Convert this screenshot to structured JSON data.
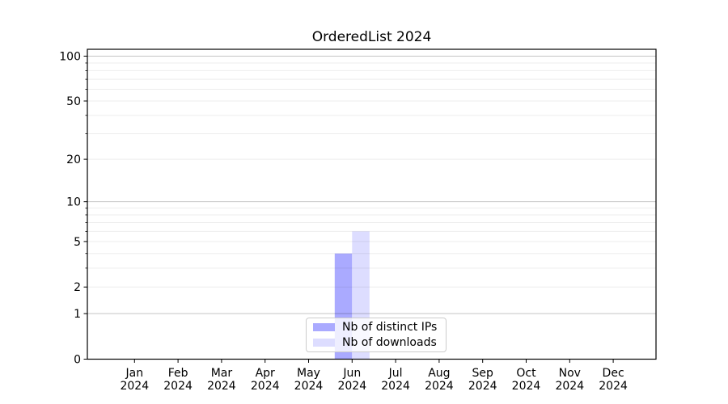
{
  "title": "OrderedList 2024",
  "legend": {
    "items": [
      {
        "label": "Nb of distinct IPs",
        "color": "#aaaaff"
      },
      {
        "label": "Nb of downloads",
        "color": "#ddddff"
      }
    ]
  },
  "chart_data": {
    "type": "bar",
    "title": "OrderedList 2024",
    "categories": [
      "Jan 2024",
      "Feb 2024",
      "Mar 2024",
      "Apr 2024",
      "May 2024",
      "Jun 2024",
      "Jul 2024",
      "Aug 2024",
      "Sep 2024",
      "Oct 2024",
      "Nov 2024",
      "Dec 2024"
    ],
    "series": [
      {
        "name": "Nb of distinct IPs",
        "color": "#aaaaff",
        "values": [
          0,
          0,
          0,
          0,
          0,
          4,
          0,
          0,
          0,
          0,
          0,
          0
        ]
      },
      {
        "name": "Nb of downloads",
        "color": "#ddddff",
        "values": [
          0,
          0,
          0,
          0,
          0,
          6,
          0,
          0,
          0,
          0,
          0,
          0
        ]
      }
    ],
    "xlabel": "",
    "ylabel": "",
    "yscale": "log1p",
    "ylim": [
      0,
      110
    ],
    "y_major_ticks": [
      0,
      1,
      2,
      5,
      10,
      20,
      50,
      100
    ],
    "y_decade_ticks": [
      1,
      10,
      100
    ],
    "y_minor_ticks": [
      3,
      4,
      6,
      7,
      8,
      9,
      30,
      40,
      60,
      70,
      80,
      90
    ],
    "grid": true,
    "legend_position": "lower center inside"
  }
}
